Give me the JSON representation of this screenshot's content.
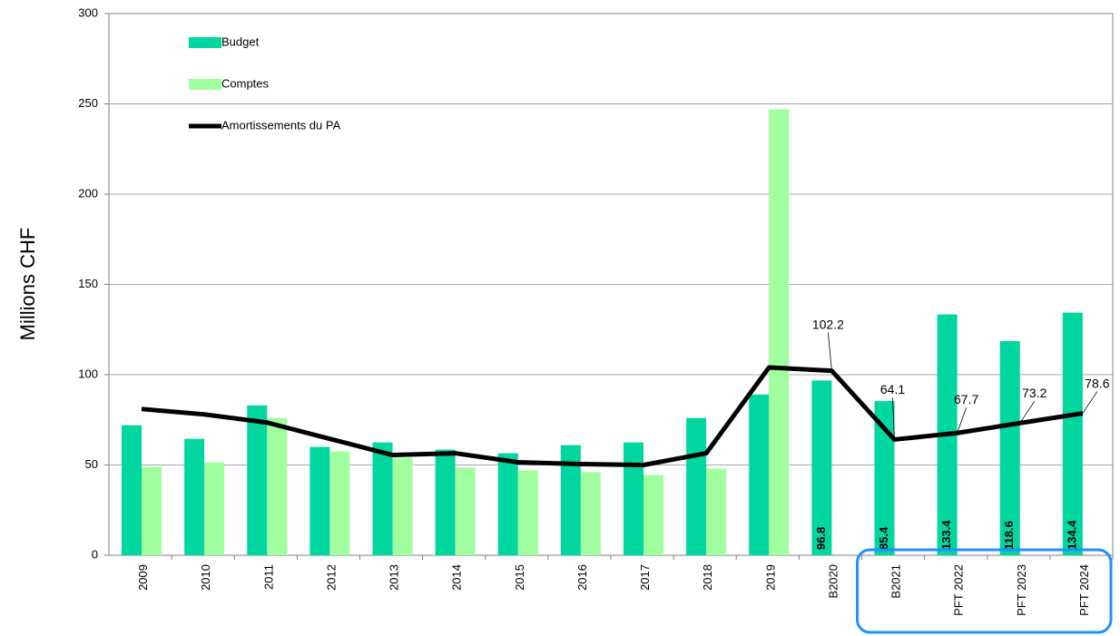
{
  "chart_data": {
    "type": "bar",
    "y_label": "Millions CHF",
    "categories": [
      "2009",
      "2010",
      "2011",
      "2012",
      "2013",
      "2014",
      "2015",
      "2016",
      "2017",
      "2018",
      "2019",
      "B2020",
      "B2021",
      "PFT 2022",
      "PFT 2023",
      "PFT 2024"
    ],
    "series": [
      {
        "name": "Budget",
        "type": "bar",
        "color": "#00d6a0",
        "values": [
          72,
          64.5,
          83,
          60,
          62.5,
          58.5,
          56.5,
          61,
          62.5,
          76,
          89,
          96.8,
          85.4,
          133.4,
          118.6,
          134.4
        ],
        "value_labels": [
          null,
          null,
          null,
          null,
          null,
          null,
          null,
          null,
          null,
          null,
          null,
          "96.8",
          "85.4",
          "133.4",
          "118.6",
          "134.4"
        ]
      },
      {
        "name": "Comptes",
        "type": "bar",
        "color": "#a0ff9e",
        "values": [
          49,
          51.5,
          76,
          57.5,
          54,
          48.5,
          47,
          46,
          44.5,
          48,
          247,
          null,
          null,
          null,
          null,
          null
        ]
      },
      {
        "name": "Amortissements du PA",
        "type": "line",
        "color": "#000000",
        "values": [
          81,
          78,
          73.5,
          64.5,
          55.5,
          56.5,
          51.5,
          50.5,
          50,
          56.5,
          104,
          102.2,
          64.1,
          67.7,
          73.2,
          78.6
        ],
        "value_labels": [
          null,
          null,
          null,
          null,
          null,
          null,
          null,
          null,
          null,
          null,
          null,
          "102.2",
          "64.1",
          "67.7",
          "73.2",
          "78.6"
        ]
      }
    ],
    "ylim": [
      0,
      300
    ],
    "yticks": [
      0,
      50,
      100,
      150,
      200,
      250,
      300
    ],
    "grid": true
  }
}
